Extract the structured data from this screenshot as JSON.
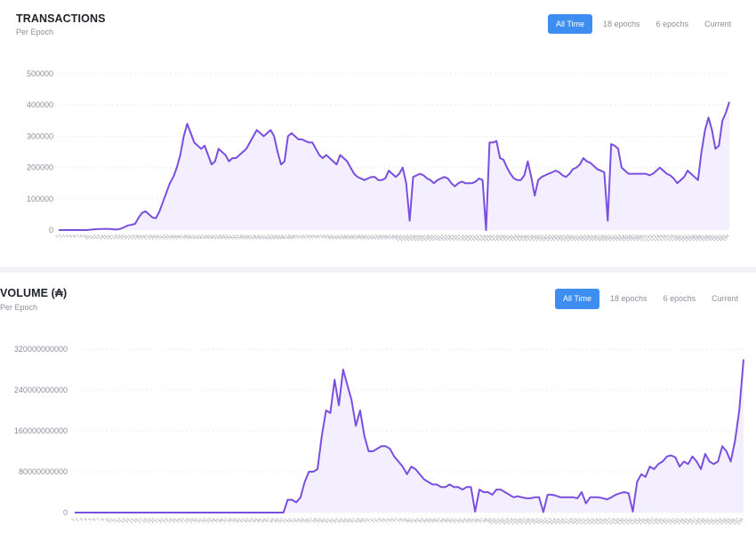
{
  "tabs": [
    "All Time",
    "18 epochs",
    "6 epochs",
    "Current"
  ],
  "active_tab": "All Time",
  "colors": {
    "line": "#7a4fe0",
    "fill": "#f3efff",
    "grid": "#ececf0",
    "tab_active": "#3d8ef0"
  },
  "chart_data": [
    {
      "type": "area",
      "title": "TRANSACTIONS",
      "subtitle": "Per Epoch",
      "ylim": [
        0,
        500000
      ],
      "yticks": [
        0,
        100000,
        200000,
        300000,
        400000,
        500000
      ],
      "ytick_labels": [
        "0",
        "100000",
        "200000",
        "300000",
        "400000",
        "500000"
      ],
      "grid": true,
      "x_start": 1,
      "values": [
        0,
        0,
        0,
        0,
        0,
        0,
        0,
        0,
        0,
        1000,
        2000,
        3000,
        3500,
        4000,
        4000,
        3000,
        2000,
        2000,
        5000,
        10000,
        15000,
        17000,
        20000,
        40000,
        55000,
        60000,
        50000,
        40000,
        38000,
        60000,
        90000,
        120000,
        150000,
        170000,
        200000,
        240000,
        300000,
        340000,
        310000,
        280000,
        270000,
        260000,
        270000,
        240000,
        210000,
        220000,
        260000,
        250000,
        240000,
        220000,
        230000,
        230000,
        240000,
        250000,
        260000,
        280000,
        300000,
        320000,
        310000,
        300000,
        310000,
        320000,
        300000,
        250000,
        210000,
        220000,
        300000,
        310000,
        300000,
        290000,
        290000,
        285000,
        280000,
        280000,
        260000,
        240000,
        230000,
        240000,
        230000,
        220000,
        210000,
        240000,
        230000,
        220000,
        200000,
        180000,
        170000,
        165000,
        160000,
        165000,
        170000,
        170000,
        160000,
        160000,
        165000,
        190000,
        180000,
        170000,
        180000,
        200000,
        150000,
        30000,
        170000,
        175000,
        180000,
        175000,
        165000,
        160000,
        150000,
        160000,
        165000,
        170000,
        165000,
        150000,
        140000,
        150000,
        155000,
        150000,
        150000,
        150000,
        155000,
        165000,
        160000,
        0,
        280000,
        280000,
        285000,
        230000,
        225000,
        200000,
        180000,
        165000,
        160000,
        160000,
        175000,
        220000,
        170000,
        110000,
        160000,
        170000,
        175000,
        180000,
        185000,
        190000,
        185000,
        175000,
        170000,
        180000,
        195000,
        200000,
        210000,
        230000,
        220000,
        215000,
        205000,
        195000,
        190000,
        185000,
        30000,
        275000,
        270000,
        260000,
        200000,
        190000,
        180000,
        180000,
        180000,
        180000,
        180000,
        180000,
        175000,
        180000,
        190000,
        200000,
        190000,
        180000,
        175000,
        165000,
        150000,
        160000,
        170000,
        190000,
        180000,
        170000,
        160000,
        250000,
        320000,
        360000,
        320000,
        260000,
        270000,
        350000,
        375000,
        410000
      ]
    },
    {
      "type": "area",
      "title": "VOLUME (₳)",
      "subtitle": "Per Epoch",
      "ylim": [
        0,
        320000000000
      ],
      "yticks": [
        0,
        80000000000,
        160000000000,
        240000000000,
        320000000000
      ],
      "ytick_labels": [
        "0",
        "80000000000",
        "160000000000",
        "240000000000",
        "320000000000"
      ],
      "grid": true,
      "x_start": 1,
      "values": [
        0,
        0,
        0,
        0,
        0,
        0,
        0,
        0,
        0,
        0,
        0,
        0,
        0,
        0,
        0,
        0,
        0,
        0,
        0,
        0,
        0,
        0,
        0,
        0,
        0,
        0,
        0,
        0,
        0,
        0,
        0,
        0,
        0,
        0,
        0,
        0,
        0,
        0,
        0,
        0,
        0,
        0,
        0,
        0,
        0,
        0,
        0,
        0,
        0,
        0,
        25000000000,
        25000000000,
        20000000000,
        30000000000,
        60000000000,
        80000000000,
        80000000000,
        85000000000,
        150000000000,
        200000000000,
        195000000000,
        260000000000,
        210000000000,
        280000000000,
        250000000000,
        220000000000,
        170000000000,
        200000000000,
        150000000000,
        120000000000,
        120000000000,
        125000000000,
        130000000000,
        130000000000,
        125000000000,
        110000000000,
        100000000000,
        90000000000,
        75000000000,
        90000000000,
        85000000000,
        75000000000,
        65000000000,
        60000000000,
        55000000000,
        55000000000,
        50000000000,
        50000000000,
        55000000000,
        50000000000,
        50000000000,
        45000000000,
        50000000000,
        50000000000,
        2000000000,
        45000000000,
        40000000000,
        40000000000,
        35000000000,
        45000000000,
        45000000000,
        40000000000,
        35000000000,
        30000000000,
        32000000000,
        30000000000,
        28000000000,
        28000000000,
        30000000000,
        30000000000,
        1000000000,
        35000000000,
        35000000000,
        33000000000,
        30000000000,
        30000000000,
        30000000000,
        30000000000,
        28000000000,
        40000000000,
        18000000000,
        30000000000,
        30000000000,
        30000000000,
        28000000000,
        26000000000,
        30000000000,
        35000000000,
        38000000000,
        40000000000,
        38000000000,
        2000000000,
        60000000000,
        75000000000,
        70000000000,
        90000000000,
        85000000000,
        95000000000,
        100000000000,
        110000000000,
        112000000000,
        108000000000,
        90000000000,
        100000000000,
        95000000000,
        110000000000,
        100000000000,
        85000000000,
        115000000000,
        100000000000,
        95000000000,
        100000000000,
        130000000000,
        120000000000,
        100000000000,
        140000000000,
        200000000000,
        300000000000
      ]
    }
  ]
}
